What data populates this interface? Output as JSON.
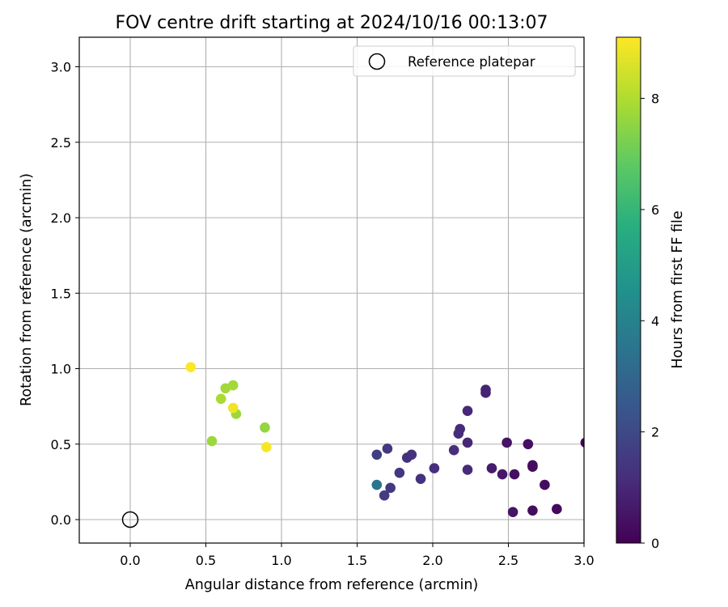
{
  "chart_data": {
    "type": "scatter",
    "title": "FOV centre drift starting at 2024/10/16 00:13:07",
    "xlabel": "Angular distance from reference (arcmin)",
    "ylabel": "Rotation from reference (arcmin)",
    "xlim": [
      -0.33,
      3.0
    ],
    "ylim": [
      -0.155,
      3.2
    ],
    "xticks": [
      "0.0",
      "0.5",
      "1.0",
      "1.5",
      "2.0",
      "2.5",
      "3.0"
    ],
    "xtick_values": [
      0.0,
      0.5,
      1.0,
      1.5,
      2.0,
      2.5,
      3.0
    ],
    "yticks": [
      "0.0",
      "0.5",
      "1.0",
      "1.5",
      "2.0",
      "2.5",
      "3.0"
    ],
    "ytick_values": [
      0.0,
      0.5,
      1.0,
      1.5,
      2.0,
      2.5,
      3.0
    ],
    "grid": true,
    "legend": {
      "placement": "top-right",
      "entries": [
        "Reference platepar"
      ]
    },
    "reference_point": {
      "x": 0.0,
      "y": 0.0
    },
    "colorbar": {
      "label": "Hours from first FF file",
      "colormap": "viridis",
      "range": [
        0,
        9.1
      ],
      "ticks": [
        "0",
        "2",
        "4",
        "6",
        "8"
      ],
      "tick_values": [
        0,
        2,
        4,
        6,
        8
      ]
    },
    "points": [
      {
        "x": 3.01,
        "y": 0.51,
        "hours": 0.1
      },
      {
        "x": 2.82,
        "y": 0.07,
        "hours": 0.2
      },
      {
        "x": 2.74,
        "y": 0.23,
        "hours": 0.3
      },
      {
        "x": 2.66,
        "y": 0.06,
        "hours": 0.3
      },
      {
        "x": 2.66,
        "y": 0.35,
        "hours": 0.3
      },
      {
        "x": 2.66,
        "y": 0.36,
        "hours": 0.3
      },
      {
        "x": 2.63,
        "y": 0.5,
        "hours": 0.4
      },
      {
        "x": 2.54,
        "y": 0.3,
        "hours": 0.4
      },
      {
        "x": 2.53,
        "y": 0.05,
        "hours": 0.5
      },
      {
        "x": 2.49,
        "y": 0.51,
        "hours": 0.5
      },
      {
        "x": 2.46,
        "y": 0.3,
        "hours": 0.6
      },
      {
        "x": 2.39,
        "y": 0.34,
        "hours": 0.7
      },
      {
        "x": 2.35,
        "y": 0.86,
        "hours": 0.9
      },
      {
        "x": 2.35,
        "y": 0.84,
        "hours": 0.9
      },
      {
        "x": 2.23,
        "y": 0.72,
        "hours": 1.0
      },
      {
        "x": 2.23,
        "y": 0.51,
        "hours": 1.0
      },
      {
        "x": 2.23,
        "y": 0.33,
        "hours": 1.1
      },
      {
        "x": 2.18,
        "y": 0.6,
        "hours": 1.1
      },
      {
        "x": 2.17,
        "y": 0.57,
        "hours": 1.1
      },
      {
        "x": 2.14,
        "y": 0.46,
        "hours": 1.2
      },
      {
        "x": 2.01,
        "y": 0.34,
        "hours": 1.2
      },
      {
        "x": 1.92,
        "y": 0.27,
        "hours": 1.3
      },
      {
        "x": 1.86,
        "y": 0.43,
        "hours": 1.3
      },
      {
        "x": 1.83,
        "y": 0.41,
        "hours": 1.3
      },
      {
        "x": 1.78,
        "y": 0.31,
        "hours": 1.4
      },
      {
        "x": 1.72,
        "y": 0.21,
        "hours": 1.5
      },
      {
        "x": 1.7,
        "y": 0.47,
        "hours": 1.5
      },
      {
        "x": 1.68,
        "y": 0.16,
        "hours": 1.6
      },
      {
        "x": 1.63,
        "y": 0.43,
        "hours": 1.7
      },
      {
        "x": 1.63,
        "y": 0.23,
        "hours": 3.5
      },
      {
        "x": 0.89,
        "y": 0.61,
        "hours": 7.6
      },
      {
        "x": 0.54,
        "y": 0.52,
        "hours": 7.7
      },
      {
        "x": 0.7,
        "y": 0.7,
        "hours": 7.7
      },
      {
        "x": 0.68,
        "y": 0.89,
        "hours": 7.8
      },
      {
        "x": 0.63,
        "y": 0.87,
        "hours": 7.8
      },
      {
        "x": 0.6,
        "y": 0.8,
        "hours": 7.9
      },
      {
        "x": 0.68,
        "y": 0.74,
        "hours": 8.9
      },
      {
        "x": 0.9,
        "y": 0.48,
        "hours": 9.0
      },
      {
        "x": 0.4,
        "y": 1.01,
        "hours": 9.1
      }
    ]
  }
}
